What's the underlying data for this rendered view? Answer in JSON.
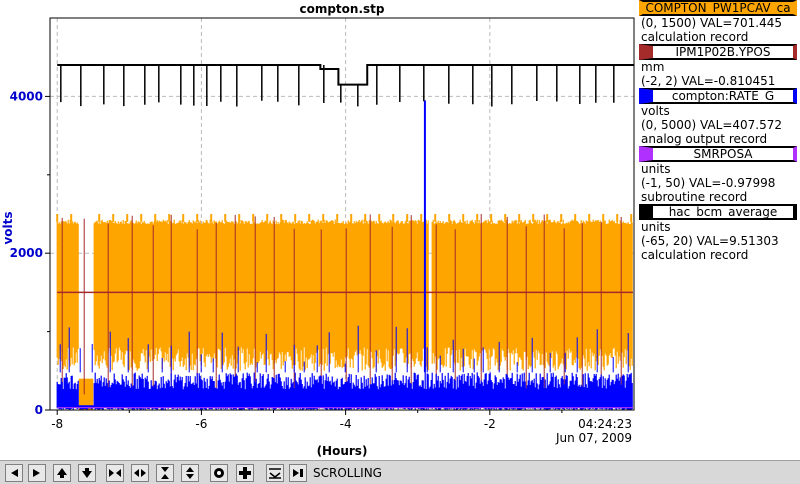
{
  "chart_data": {
    "type": "line",
    "title": "compton.stp",
    "xlabel": "(Hours)",
    "ylabel": "volts",
    "xlim": [
      -8.1,
      0
    ],
    "ylim": [
      0,
      5000
    ],
    "x_ticks": [
      -8,
      -6,
      -4,
      -2
    ],
    "y_ticks": [
      0,
      2000,
      4000
    ],
    "end_time": "04:24:23",
    "end_date": "Jun 07, 2009",
    "grid": true,
    "colors": {
      "COMPTON_PW1PCAV_ca": "#ffa500",
      "IPM1P02B.YPOS": "#a52a2a",
      "compton:RATE_G": "#0000ff",
      "SMRPOSA": "#b030ff",
      "hac_bcm_average": "#000000"
    },
    "series": [
      {
        "name": "hac_bcm_average",
        "color": "#000000",
        "base": 4400,
        "dip": 3870,
        "segments": [
          [
            -8.0,
            -4.35,
            4400
          ],
          [
            -4.35,
            -4.1,
            4350
          ],
          [
            -4.1,
            -3.7,
            4150
          ],
          [
            -3.7,
            0,
            4400
          ]
        ]
      },
      {
        "name": "COMPTON_PW1PCAV_ca",
        "color": "#ffa500",
        "band_low": 500,
        "band_high": 2400,
        "gaps": [
          [
            -7.7,
            -7.5
          ],
          [
            -2.85,
            -2.8
          ]
        ],
        "spikes": 2500
      },
      {
        "name": "IPM1P02B.YPOS",
        "color": "#a52a2a",
        "level": 1500,
        "spike_high": 2500,
        "spike_low": 200
      },
      {
        "name": "compton:RATE_G",
        "color": "#0000ff",
        "band_low": 0,
        "band_high": 480,
        "spike_x": -2.9,
        "spike_value": 3950,
        "low_gap": [
          -7.7,
          -7.5
        ]
      },
      {
        "name": "SMRPOSA",
        "color": "#b030ff",
        "level": 30
      }
    ]
  },
  "legend": [
    {
      "name": "COMPTON_PW1PCAV_ca",
      "color": "#ffa500",
      "lines": [
        "(0, 1500) VAL=701.445",
        "calculation record"
      ]
    },
    {
      "name": "IPM1P02B.YPOS",
      "color": "#a52a2a",
      "lines": [
        "mm",
        "(-2, 2) VAL=-0.810451"
      ]
    },
    {
      "name": "compton:RATE_G",
      "color": "#0000ff",
      "lines": [
        "volts",
        "(0, 5000) VAL=407.572",
        "analog output record"
      ]
    },
    {
      "name": "SMRPOSA",
      "color": "#b030ff",
      "lines": [
        "units",
        "(-1, 50) VAL=-0.97998",
        "subroutine record"
      ]
    },
    {
      "name": "hac_bcm_average",
      "color": "#000000",
      "lines": [
        "units",
        "(-65, 20) VAL=9.51303",
        "calculation record"
      ]
    }
  ],
  "toolbar": {
    "status": "SCROLLING",
    "buttons": [
      "arrow-left-icon",
      "arrow-right-icon",
      "arrow-up-icon",
      "arrow-down-icon",
      "zoom-in-horizontal-icon",
      "zoom-out-horizontal-icon",
      "zoom-in-vertical-icon",
      "zoom-out-vertical-icon",
      "record-icon",
      "add-icon",
      "autoscale-icon",
      "scroll-to-end-icon"
    ]
  }
}
